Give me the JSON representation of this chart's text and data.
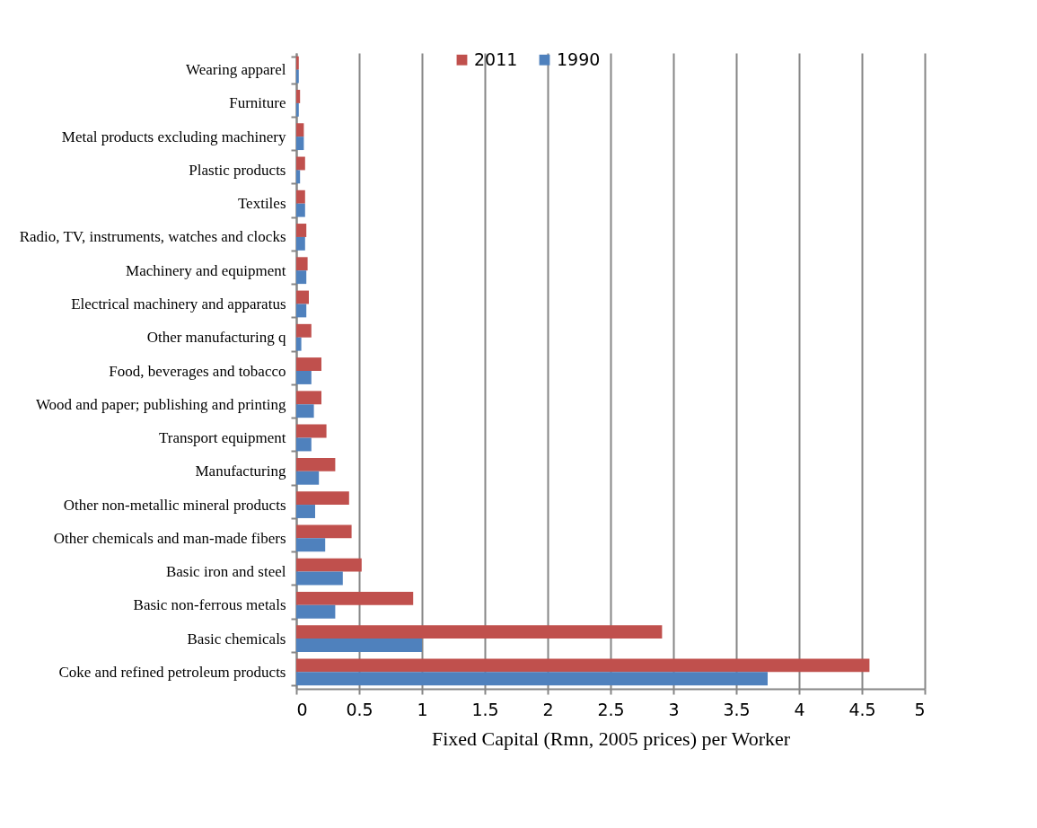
{
  "chart_data": {
    "type": "bar",
    "orientation": "horizontal",
    "xlabel": "Fixed Capital (Rmn, 2005 prices) per Worker",
    "categories": [
      "Wearing apparel",
      "Furniture",
      "Metal products excluding machinery",
      "Plastic products",
      "Textiles",
      "Radio, TV, instruments, watches and clocks",
      "Machinery and equipment",
      "Electrical machinery and apparatus",
      "Other manufacturing q",
      "Food, beverages and tobacco",
      "Wood and paper; publishing and printing",
      "Transport equipment",
      "Manufacturing",
      "Other non-metallic mineral products",
      "Other chemicals and man-made fibers",
      "Basic iron and steel",
      "Basic non-ferrous metals",
      "Basic chemicals",
      "Coke and refined petroleum products"
    ],
    "series": [
      {
        "name": "2011",
        "color": "#c0504d",
        "values": [
          0.02,
          0.03,
          0.06,
          0.07,
          0.07,
          0.08,
          0.09,
          0.1,
          0.12,
          0.2,
          0.2,
          0.24,
          0.31,
          0.42,
          0.44,
          0.52,
          0.93,
          2.91,
          4.56
        ]
      },
      {
        "name": "1990",
        "color": "#4f81bd",
        "values": [
          0.02,
          0.02,
          0.06,
          0.03,
          0.07,
          0.07,
          0.08,
          0.08,
          0.04,
          0.12,
          0.14,
          0.12,
          0.18,
          0.15,
          0.23,
          0.37,
          0.31,
          1.0,
          3.75
        ]
      }
    ],
    "xlim": [
      0,
      5
    ],
    "xticks": [
      0,
      0.5,
      1,
      1.5,
      2,
      2.5,
      3,
      3.5,
      4,
      4.5,
      5
    ],
    "grid": "x",
    "legend": "top"
  }
}
